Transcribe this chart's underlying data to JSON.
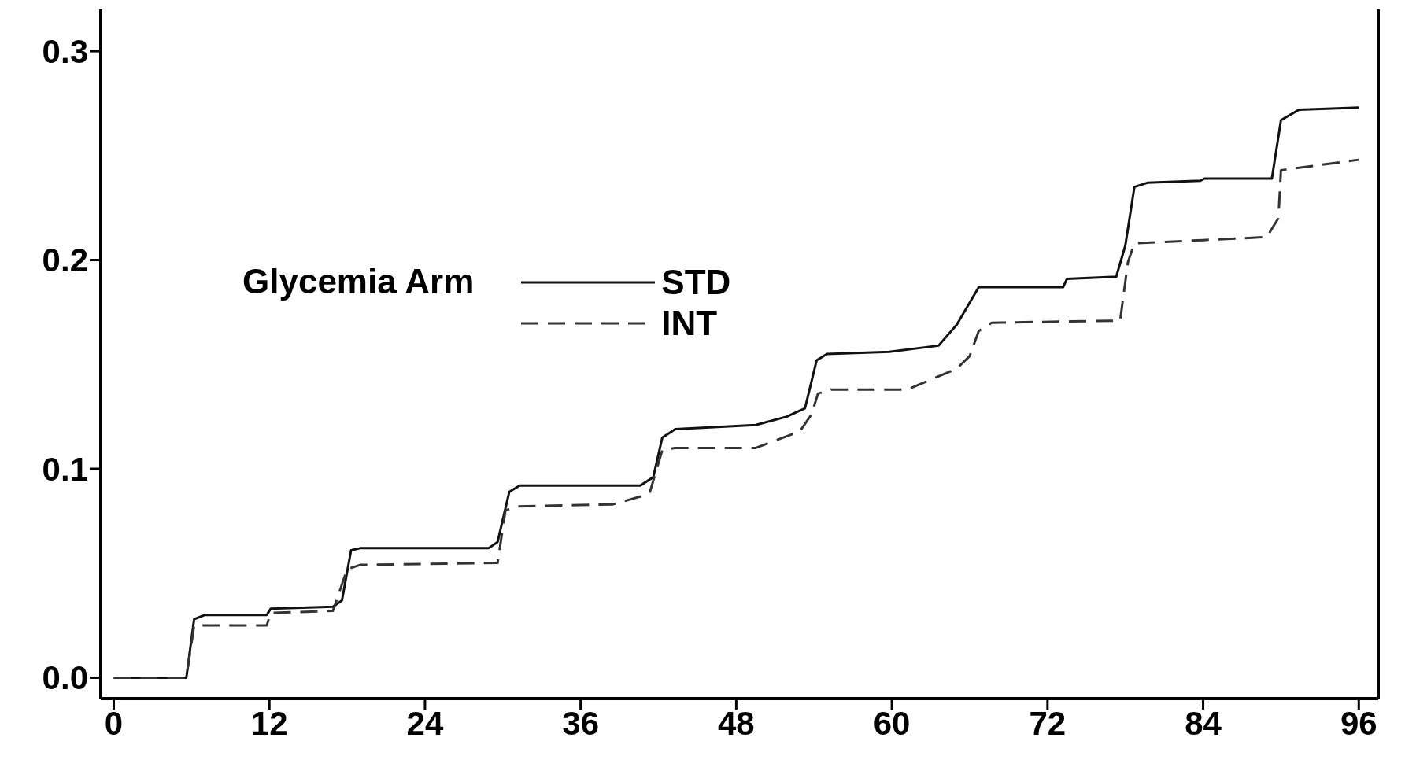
{
  "chart_data": {
    "type": "line",
    "legend_title": "Glycemia Arm",
    "legend": "left",
    "marker": "none",
    "xlim": [
      -1,
      97.5
    ],
    "xticks": [
      0,
      12,
      24,
      36,
      48,
      60,
      72,
      84,
      96
    ],
    "ylim": [
      -0.01,
      0.32
    ],
    "yticks": [
      {
        "value": 0,
        "label": "0.0"
      },
      0.1,
      0.2,
      0.3
    ],
    "series": [
      {
        "name": "STD",
        "color": "#111111",
        "line_style": "solid",
        "x": [
          0,
          5.6,
          6.2,
          7,
          11.8,
          12.1,
          16.9,
          17.6,
          18.3,
          19,
          28.9,
          29.6,
          30.5,
          31.3,
          40.6,
          41.6,
          42.3,
          43.3,
          49.5,
          51.9,
          53.3,
          54.2,
          55,
          59.8,
          63.6,
          65,
          66.7,
          73.2,
          73.5,
          77.3,
          78,
          78.7,
          79.7,
          83.8,
          84.1,
          89.3,
          90,
          91.4,
          96
        ],
        "values": [
          0,
          0,
          0.028,
          0.03,
          0.03,
          0.033,
          0.034,
          0.037,
          0.061,
          0.062,
          0.062,
          0.065,
          0.089,
          0.092,
          0.092,
          0.096,
          0.115,
          0.119,
          0.121,
          0.125,
          0.129,
          0.152,
          0.155,
          0.156,
          0.159,
          0.169,
          0.187,
          0.187,
          0.191,
          0.192,
          0.207,
          0.235,
          0.237,
          0.238,
          0.239,
          0.239,
          0.267,
          0.272,
          0.273
        ]
      },
      {
        "name": "INT",
        "color": "#333333",
        "line_style": "dashed",
        "x": [
          0,
          5.6,
          6.2,
          11.8,
          12.1,
          16.9,
          18,
          19,
          29.6,
          30.2,
          31,
          38.5,
          41.3,
          42.3,
          43.3,
          49.5,
          52.9,
          53.8,
          54.3,
          55.3,
          61.2,
          65,
          66,
          66.7,
          67.7,
          77.6,
          78.2,
          78.7,
          88.9,
          89.8,
          90,
          96
        ],
        "values": [
          0,
          0,
          0.025,
          0.025,
          0.031,
          0.032,
          0.052,
          0.054,
          0.055,
          0.08,
          0.082,
          0.083,
          0.088,
          0.109,
          0.11,
          0.11,
          0.118,
          0.126,
          0.136,
          0.138,
          0.138,
          0.148,
          0.154,
          0.166,
          0.17,
          0.171,
          0.199,
          0.208,
          0.211,
          0.22,
          0.243,
          0.248
        ]
      }
    ]
  }
}
